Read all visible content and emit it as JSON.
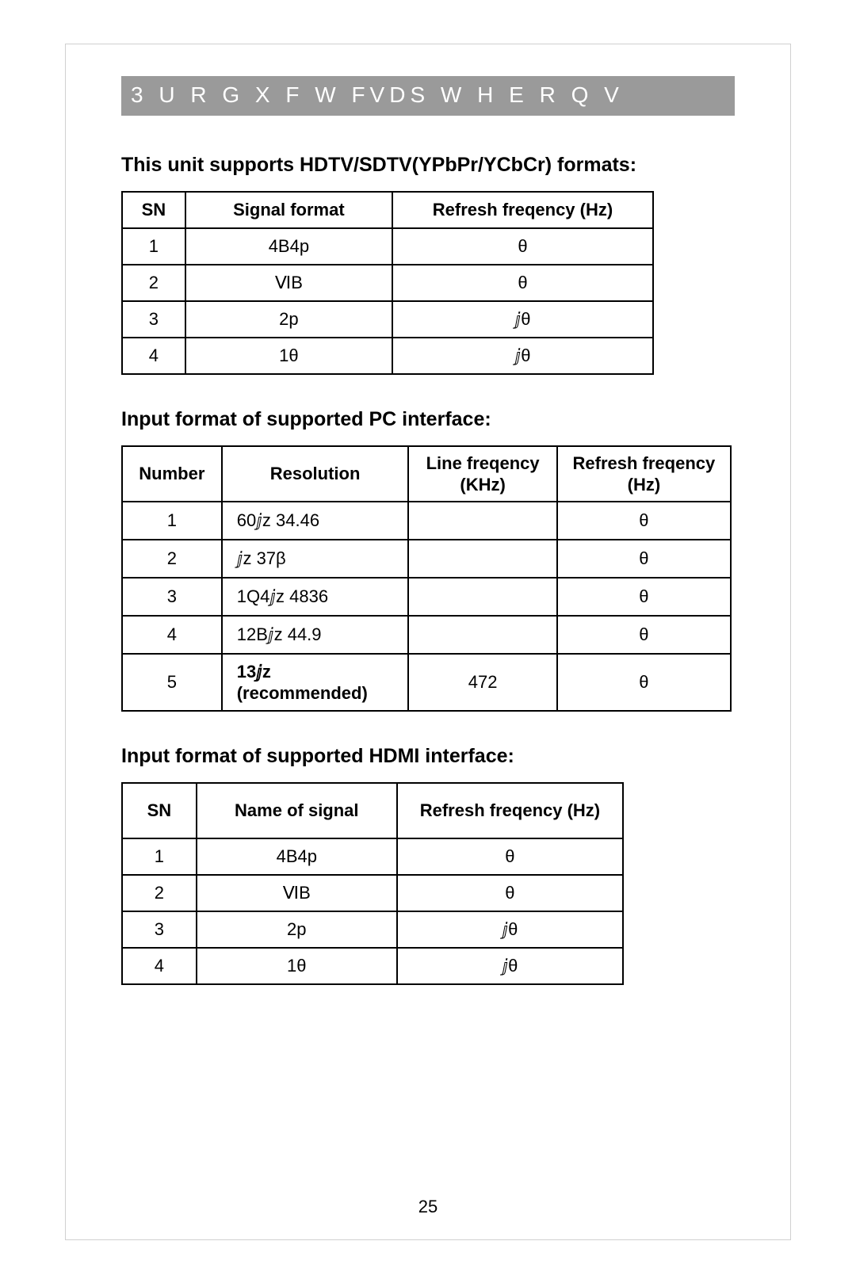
{
  "banner": "3 U R G X F W   FVDS W H E R Q V",
  "section1": {
    "title": "This unit supports HDTV/SDTV(YPbPr/YCbCr) formats:",
    "headers": [
      "SN",
      "Signal format",
      "Refresh freqency (Hz)"
    ],
    "rows": [
      [
        "1",
        "4B4p",
        "θ"
      ],
      [
        "2",
        "ⅥB",
        "θ"
      ],
      [
        "3",
        "2p",
        "ⅉθ"
      ],
      [
        "4",
        "1θ",
        "ⅉθ"
      ]
    ]
  },
  "section2": {
    "title": "Input format of supported PC interface:",
    "headers": [
      "Number",
      "Resolution",
      "Line freqency (KHz)",
      "Refresh freqency (Hz)"
    ],
    "rows": [
      [
        "1",
        "60ⅉz              34.46",
        "",
        "θ"
      ],
      [
        "2",
        "ⅉz           37β",
        "",
        "θ"
      ],
      [
        "3",
        "1Q4ⅉz        4836",
        "",
        "θ"
      ],
      [
        "4",
        "12Bⅉz            44.9",
        "",
        "θ"
      ],
      [
        "5",
        "13ⅉz\n(recommended)",
        "472",
        "θ"
      ]
    ]
  },
  "section3": {
    "title": "Input format of supported HDMI interface:",
    "headers": [
      "SN",
      "Name of signal",
      "Refresh freqency (Hz)"
    ],
    "rows": [
      [
        "1",
        "4B4p",
        "θ"
      ],
      [
        "2",
        "ⅥB",
        "θ"
      ],
      [
        "3",
        "2p",
        "ⅉθ"
      ],
      [
        "4",
        "1θ",
        "ⅉθ"
      ]
    ]
  },
  "pageNumber": "25"
}
